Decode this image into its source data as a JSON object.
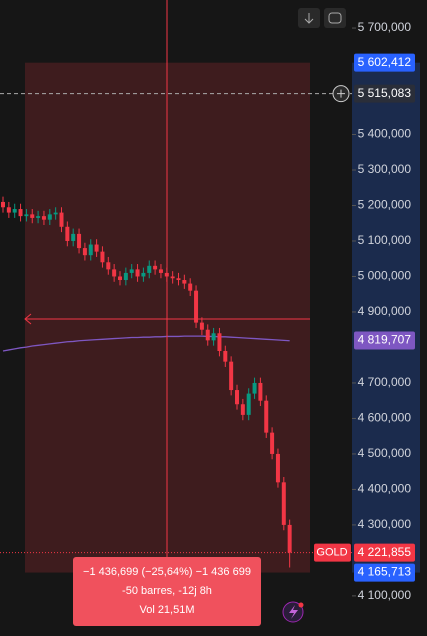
{
  "chart_data": {
    "type": "candlestick",
    "symbol": "GOLD",
    "ylim": [
      3987,
      5779
    ],
    "yticks": [
      {
        "value": 5700,
        "label": "5 700,000"
      },
      {
        "value": 5400,
        "label": "5 400,000"
      },
      {
        "value": 5300,
        "label": "5 300,000"
      },
      {
        "value": 5200,
        "label": "5 200,000"
      },
      {
        "value": 5100,
        "label": "5 100,000"
      },
      {
        "value": 5000,
        "label": "5 000,000"
      },
      {
        "value": 4900,
        "label": "4 900,000"
      },
      {
        "value": 4700,
        "label": "4 700,000"
      },
      {
        "value": 4600,
        "label": "4 600,000"
      },
      {
        "value": 4500,
        "label": "4 500,000"
      },
      {
        "value": 4400,
        "label": "4 400,000"
      },
      {
        "value": 4300,
        "label": "4 300,000"
      },
      {
        "value": 4100,
        "label": "4 100,000"
      }
    ],
    "up_color": "#089981",
    "down_color": "#f23645",
    "open": [
      5210,
      5195,
      5180,
      5190,
      5170,
      5175,
      5165,
      5170,
      5160,
      5175,
      5180,
      5140,
      5100,
      5120,
      5080,
      5060,
      5090,
      5070,
      5040,
      5020,
      5000,
      4990,
      5010,
      5020,
      5000,
      5010,
      5030,
      5020,
      5010,
      5000,
      4995,
      4990,
      4980,
      4960,
      4870,
      4850,
      4820,
      4840,
      4790,
      4760,
      4680,
      4640,
      4610,
      4670,
      4700,
      4650,
      4560,
      4500,
      4420,
      4300
    ],
    "high": [
      5225,
      5210,
      5205,
      5205,
      5190,
      5190,
      5185,
      5185,
      5190,
      5195,
      5195,
      5155,
      5135,
      5135,
      5095,
      5105,
      5105,
      5085,
      5055,
      5035,
      5015,
      5025,
      5035,
      5035,
      5025,
      5045,
      5045,
      5035,
      5025,
      5015,
      5010,
      5005,
      4995,
      4975,
      4885,
      4865,
      4855,
      4855,
      4805,
      4775,
      4695,
      4655,
      4685,
      4715,
      4715,
      4665,
      4575,
      4515,
      4435,
      4315
    ],
    "low": [
      5180,
      5165,
      5165,
      5155,
      5155,
      5150,
      5150,
      5145,
      5145,
      5160,
      5125,
      5085,
      5085,
      5065,
      5045,
      5045,
      5055,
      5025,
      5005,
      4985,
      4975,
      4975,
      4995,
      4985,
      4985,
      4995,
      5005,
      4995,
      4985,
      4980,
      4975,
      4965,
      4945,
      4855,
      4835,
      4805,
      4805,
      4775,
      4745,
      4665,
      4625,
      4595,
      4595,
      4655,
      4635,
      4545,
      4485,
      4405,
      4285,
      4180
    ],
    "close": [
      5195,
      5180,
      5190,
      5170,
      5175,
      5165,
      5170,
      5160,
      5175,
      5180,
      5140,
      5100,
      5120,
      5080,
      5060,
      5090,
      5070,
      5040,
      5020,
      5000,
      4990,
      5010,
      5020,
      5000,
      5010,
      5030,
      5020,
      5010,
      5000,
      4995,
      4990,
      4980,
      4960,
      4870,
      4850,
      4820,
      4840,
      4790,
      4760,
      4680,
      4640,
      4610,
      4670,
      4700,
      4650,
      4560,
      4500,
      4420,
      4300,
      4222
    ],
    "ma": {
      "color": "#7e57c2",
      "values": [
        4790,
        4793,
        4796,
        4799,
        4801,
        4804,
        4806,
        4808,
        4810,
        4812,
        4814,
        4816,
        4817,
        4819,
        4820,
        4821,
        4822,
        4823,
        4824,
        4825,
        4826,
        4827,
        4828,
        4828,
        4829,
        4829,
        4830,
        4830,
        4831,
        4831,
        4831,
        4832,
        4832,
        4832,
        4832,
        4831,
        4831,
        4830,
        4830,
        4829,
        4828,
        4827,
        4826,
        4825,
        4824,
        4823,
        4822,
        4821,
        4820,
        4819
      ]
    },
    "price_labels": [
      {
        "value": 5602.412,
        "label": "5 602,412",
        "color": "#2962ff"
      },
      {
        "value": 5515.083,
        "label": "5 515,083",
        "color": "#2a2e39",
        "line": "dashed"
      },
      {
        "value": 4819.707,
        "label": "4 819,707",
        "color": "#7e57c2"
      },
      {
        "value": 4221.855,
        "label": "4 221,855",
        "color": "#f23645",
        "line": "dotted"
      },
      {
        "value": 4165.713,
        "label": "4 165,713",
        "color": "#2962ff"
      }
    ],
    "measure": {
      "change": "−1 436,699 (−25,64%) −1 436 699",
      "bars": "-50 barres, -12j 8h",
      "volume": "Vol 21,51M"
    }
  }
}
